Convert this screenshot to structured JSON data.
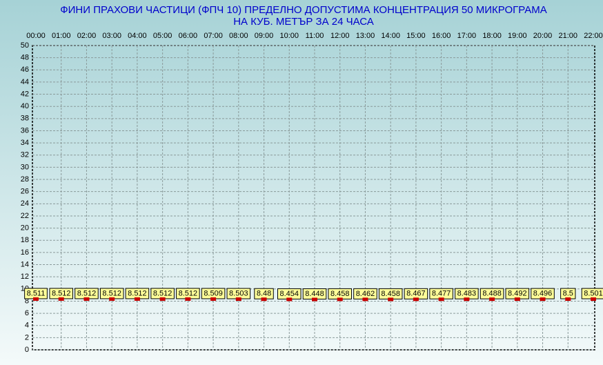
{
  "chart_data": {
    "type": "point",
    "title": [
      "ФИНИ  ПРАХОВИ ЧАСТИЦИ  (ФПЧ 10)  ПРЕДЕЛНО ДОПУСТИМА КОНЦЕНТРАЦИЯ 50 МИКРОГРАМА",
      "НА КУБ. МЕТЪР   ЗА 24 ЧАСА"
    ],
    "categories": [
      "00:00",
      "01:00",
      "02:00",
      "03:00",
      "04:00",
      "05:00",
      "06:00",
      "07:00",
      "08:00",
      "09:00",
      "10:00",
      "11:00",
      "12:00",
      "13:00",
      "14:00",
      "15:00",
      "16:00",
      "17:00",
      "18:00",
      "19:00",
      "20:00",
      "21:00",
      "22:00"
    ],
    "values": [
      8.511,
      8.512,
      8.512,
      8.512,
      8.512,
      8.512,
      8.512,
      8.509,
      8.503,
      8.48,
      8.454,
      8.448,
      8.458,
      8.462,
      8.458,
      8.467,
      8.477,
      8.483,
      8.488,
      8.492,
      8.496,
      8.5,
      8.501
    ],
    "color": "#cc0000",
    "label_color": "#ffff99",
    "ylim": [
      0,
      50
    ],
    "yticks": [
      0,
      2,
      4,
      6,
      8,
      10,
      12,
      14,
      16,
      18,
      20,
      22,
      24,
      26,
      28,
      30,
      32,
      34,
      36,
      38,
      40,
      42,
      44,
      46,
      48,
      50
    ],
    "grid": true
  }
}
